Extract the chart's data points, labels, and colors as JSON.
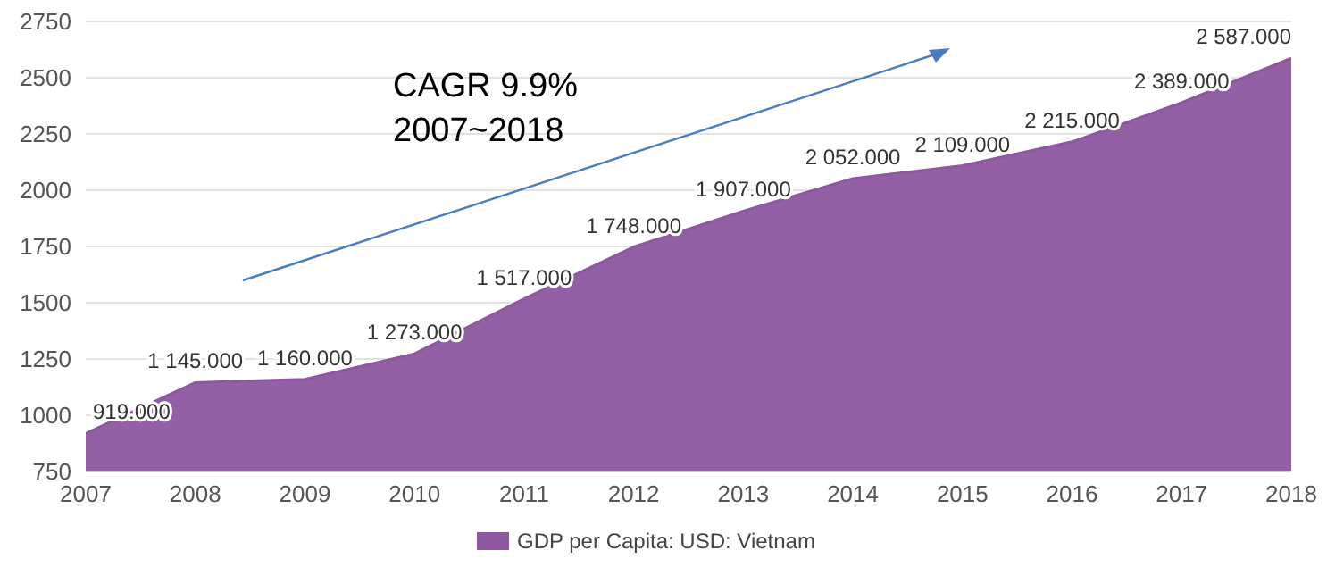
{
  "chart_data": {
    "type": "area",
    "x": [
      2007,
      2008,
      2009,
      2010,
      2011,
      2012,
      2013,
      2014,
      2015,
      2016,
      2017,
      2018
    ],
    "series": [
      {
        "name": "GDP per Capita: USD: Vietnam",
        "color": "#8e57a0",
        "values": [
          919,
          1145,
          1160,
          1273,
          1517,
          1748,
          1907,
          2052,
          2109,
          2215,
          2389,
          2587
        ],
        "value_labels": [
          "919.000",
          "1 145.000",
          "1 160.000",
          "1 273.000",
          "1 517.000",
          "1 748.000",
          "1 907.000",
          "2 052.000",
          "2 109.000",
          "2 215.000",
          "2 389.000",
          "2 587.000"
        ]
      }
    ],
    "xlim": [
      2007,
      2018
    ],
    "xticks": [
      2007,
      2008,
      2009,
      2010,
      2011,
      2012,
      2013,
      2014,
      2015,
      2016,
      2017,
      2018
    ],
    "ylim": [
      750,
      2750
    ],
    "yticks": [
      750,
      1000,
      1250,
      1500,
      1750,
      2000,
      2250,
      2500,
      2750
    ],
    "grid": "y",
    "legend": "bottom",
    "annotations": [
      "CAGR 9.9%",
      "2007~2018"
    ]
  }
}
